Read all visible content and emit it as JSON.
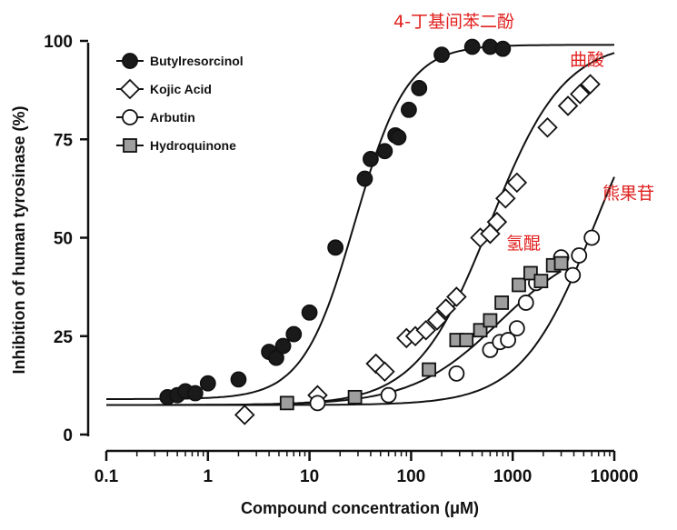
{
  "chart_data": {
    "type": "scatter",
    "xlabel": "Compound concentration (μM)",
    "ylabel": "Inhibition of human tyrosinase (%)",
    "xscale": "log",
    "xlim": [
      0.1,
      10000
    ],
    "ylim": [
      0,
      100
    ],
    "xticks": [
      0.1,
      1,
      10,
      100,
      1000,
      10000
    ],
    "xtick_labels": [
      "0.1",
      "1",
      "10",
      "100",
      "1000",
      "10000"
    ],
    "yticks": [
      0,
      25,
      50,
      75,
      100
    ],
    "ytick_labels": [
      "0",
      "25",
      "50",
      "75",
      "100"
    ],
    "grid": false,
    "legend_position": "top-left",
    "series": [
      {
        "name": "Butylresorcinol",
        "marker": "circle-filled",
        "color": "#1a1a1a",
        "x": [
          0.4,
          0.5,
          0.6,
          0.75,
          1.0,
          2.0,
          4.0,
          4.7,
          5.5,
          7.0,
          10.0,
          18.0,
          35.0,
          40.0,
          55.0,
          70.0,
          75.0,
          95.0,
          120.0,
          200.0,
          400.0,
          600.0,
          800.0
        ],
        "y": [
          9.5,
          10.0,
          11.0,
          10.5,
          13.0,
          14.0,
          21.0,
          19.5,
          22.5,
          25.5,
          31.0,
          47.5,
          65.0,
          70.0,
          72.0,
          76.0,
          75.5,
          82.5,
          88.0,
          96.5,
          98.5,
          98.5,
          98.0
        ],
        "fit": {
          "bottom": 9,
          "top": 99,
          "ec50": 28.0,
          "hill": 1.7
        }
      },
      {
        "name": "Kojic Acid",
        "marker": "diamond-open",
        "color": "#1a1a1a",
        "x": [
          2.3,
          12.0,
          45.0,
          55.0,
          90.0,
          110.0,
          140.0,
          180.0,
          220.0,
          280.0,
          480.0,
          600.0,
          700.0,
          850.0,
          1100.0,
          2200.0,
          3500.0,
          4600.0,
          5800.0
        ],
        "y": [
          5.0,
          10.0,
          18.0,
          16.0,
          24.5,
          25.0,
          26.5,
          29.0,
          32.0,
          35.0,
          50.0,
          51.0,
          54.0,
          60.0,
          64.0,
          78.0,
          83.5,
          86.5,
          89.0
        ],
        "fit": {
          "bottom": 7.5,
          "top": 100,
          "ec50": 600.0,
          "hill": 1.2
        }
      },
      {
        "name": "Arbutin",
        "marker": "circle-open",
        "color": "#1a1a1a",
        "x": [
          12.0,
          60.0,
          280.0,
          600.0,
          750.0,
          900.0,
          1100.0,
          1350.0,
          1700.0,
          3000.0,
          3900.0,
          4500.0,
          6000.0
        ],
        "y": [
          8.0,
          10.0,
          15.5,
          21.5,
          23.5,
          24.0,
          27.0,
          33.5,
          38.5,
          45.0,
          40.5,
          45.5,
          50.0
        ],
        "fit": {
          "bottom": 7.5,
          "top": 100,
          "ec50": 6500.0,
          "hill": 1.2
        }
      },
      {
        "name": "Hydroquinone",
        "marker": "square-gray",
        "color": "#9e9e9e",
        "x": [
          6.0,
          28.0,
          150.0,
          280.0,
          350.0,
          480.0,
          600.0,
          780.0,
          1150.0,
          1500.0,
          1900.0,
          2500.0,
          3000.0
        ],
        "y": [
          8.0,
          9.5,
          16.5,
          24.0,
          24.0,
          26.5,
          29.0,
          33.5,
          38.0,
          41.0,
          39.0,
          43.0,
          43.5
        ],
        "fit": {
          "bottom": 7.5,
          "top": 50,
          "ec50": 750.0,
          "hill": 1.0,
          "x_end": 3000.0
        }
      }
    ],
    "annotations": [
      {
        "text": "4-丁基间苯二酚",
        "color": "#e0201e",
        "label_for": "Butylresorcinol"
      },
      {
        "text": "曲酸",
        "color": "#e0201e",
        "label_for": "Kojic Acid"
      },
      {
        "text": "熊果苷",
        "color": "#e0201e",
        "label_for": "Arbutin"
      },
      {
        "text": "氢醌",
        "color": "#e0201e",
        "label_for": "Hydroquinone"
      }
    ]
  }
}
